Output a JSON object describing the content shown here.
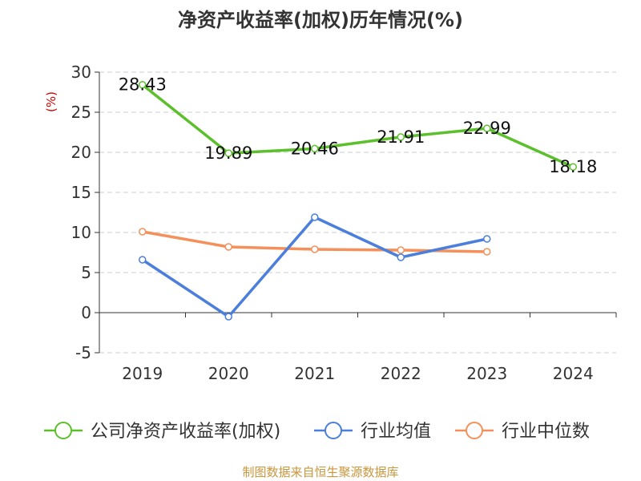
{
  "chart_data": {
    "type": "line",
    "title": "净资产收益率(加权)历年情况(%)",
    "ylabel": "(%)",
    "xlabel": "",
    "categories": [
      "2019",
      "2020",
      "2021",
      "2022",
      "2023",
      "2024"
    ],
    "ylim": [
      -5,
      30
    ],
    "yticks": [
      30,
      25,
      20,
      15,
      10,
      5,
      0,
      -5
    ],
    "grid": true,
    "legend_position": "bottom",
    "series": [
      {
        "name": "公司净资产收益率(加权)",
        "color": "#5cc02c",
        "values": [
          28.43,
          19.89,
          20.46,
          21.91,
          22.99,
          18.18
        ],
        "labels": [
          "28.43",
          "19.89",
          "20.46",
          "21.91",
          "22.99",
          "18.18"
        ]
      },
      {
        "name": "行业均值",
        "color": "#4c7fdb",
        "values": [
          6.6,
          -0.5,
          11.9,
          6.9,
          9.2,
          null
        ]
      },
      {
        "name": "行业中位数",
        "color": "#f5905a",
        "values": [
          10.1,
          8.2,
          7.9,
          7.8,
          7.6,
          null
        ]
      }
    ]
  },
  "source_text": "制图数据来自恒生聚源数据库",
  "colors": {
    "axis": "#333333",
    "grid": "#cccccc",
    "ylabel": "#cc0000",
    "source": "#c8963c"
  }
}
